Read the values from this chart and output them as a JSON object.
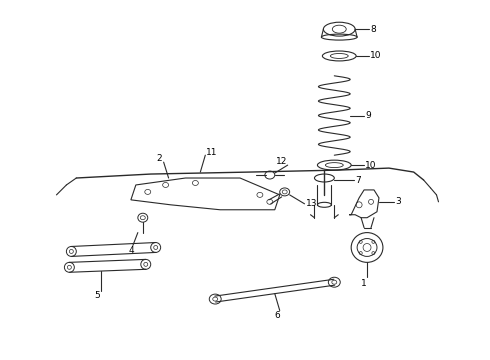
{
  "background_color": "#ffffff",
  "line_color": "#2a2a2a",
  "label_color": "#000000",
  "parts": {
    "part8_label": "8",
    "part10a_label": "10",
    "part9_label": "9",
    "part10b_label": "10",
    "part7_label": "7",
    "part3_label": "3",
    "part1_label": "1",
    "part11_label": "11",
    "part12_label": "12",
    "part13_label": "13",
    "part2_label": "2",
    "part4_label": "4",
    "part5_label": "5",
    "part6_label": "6"
  },
  "fig_width": 4.9,
  "fig_height": 3.6,
  "dpi": 100
}
